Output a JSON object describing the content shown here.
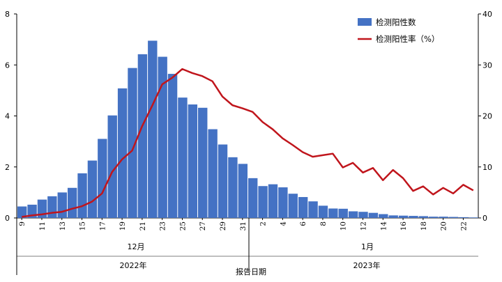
{
  "chart_data": {
    "type": "bar+line",
    "title": "",
    "xlabel": "报告日期",
    "x_tick_labels": [
      "9",
      "11",
      "13",
      "15",
      "17",
      "19",
      "21",
      "23",
      "25",
      "27",
      "29",
      "31",
      "2",
      "4",
      "6",
      "8",
      "10",
      "12",
      "14",
      "16",
      "18",
      "20",
      "22"
    ],
    "month_labels": [
      "12月",
      "1月"
    ],
    "year_labels": [
      "2022年",
      "2023年"
    ],
    "y_left": {
      "label": "",
      "ticks": [
        "0",
        "2",
        "4",
        "6",
        "8"
      ],
      "lim": [
        0,
        8
      ]
    },
    "y_right": {
      "label": "",
      "ticks": [
        "0",
        "10",
        "20",
        "30",
        "40"
      ],
      "lim": [
        0,
        40
      ]
    },
    "grid": false,
    "legend_position": "top-right",
    "series": [
      {
        "name": "检测阳性数",
        "type": "bar",
        "axis": "left",
        "color": "#4472c4",
        "values": [
          0.45,
          0.52,
          0.72,
          0.85,
          1.0,
          1.18,
          1.75,
          2.25,
          3.1,
          4.02,
          5.08,
          5.88,
          6.42,
          6.95,
          6.32,
          5.65,
          4.72,
          4.45,
          4.32,
          3.48,
          2.88,
          2.38,
          2.12,
          1.56,
          1.25,
          1.32,
          1.2,
          0.95,
          0.82,
          0.65,
          0.48,
          0.37,
          0.36,
          0.26,
          0.24,
          0.2,
          0.15,
          0.1,
          0.09,
          0.08,
          0.07,
          0.05,
          0.05,
          0.04,
          0.03,
          0.02
        ]
      },
      {
        "name": "检测阳性率（%）",
        "type": "line",
        "axis": "right",
        "color": "#c0151c",
        "values": [
          0.2,
          0.5,
          0.7,
          1.0,
          1.2,
          1.8,
          2.3,
          3.2,
          4.8,
          9.0,
          11.5,
          13.2,
          18.0,
          22.0,
          26.2,
          27.5,
          29.2,
          28.4,
          27.8,
          26.8,
          23.8,
          22.1,
          21.5,
          20.8,
          18.8,
          17.4,
          15.6,
          14.3,
          12.9,
          12.0,
          12.3,
          12.6,
          9.9,
          10.8,
          8.9,
          9.8,
          7.4,
          9.4,
          7.8,
          5.3,
          6.2,
          4.6,
          5.9,
          4.8,
          6.5,
          5.4
        ]
      }
    ]
  }
}
